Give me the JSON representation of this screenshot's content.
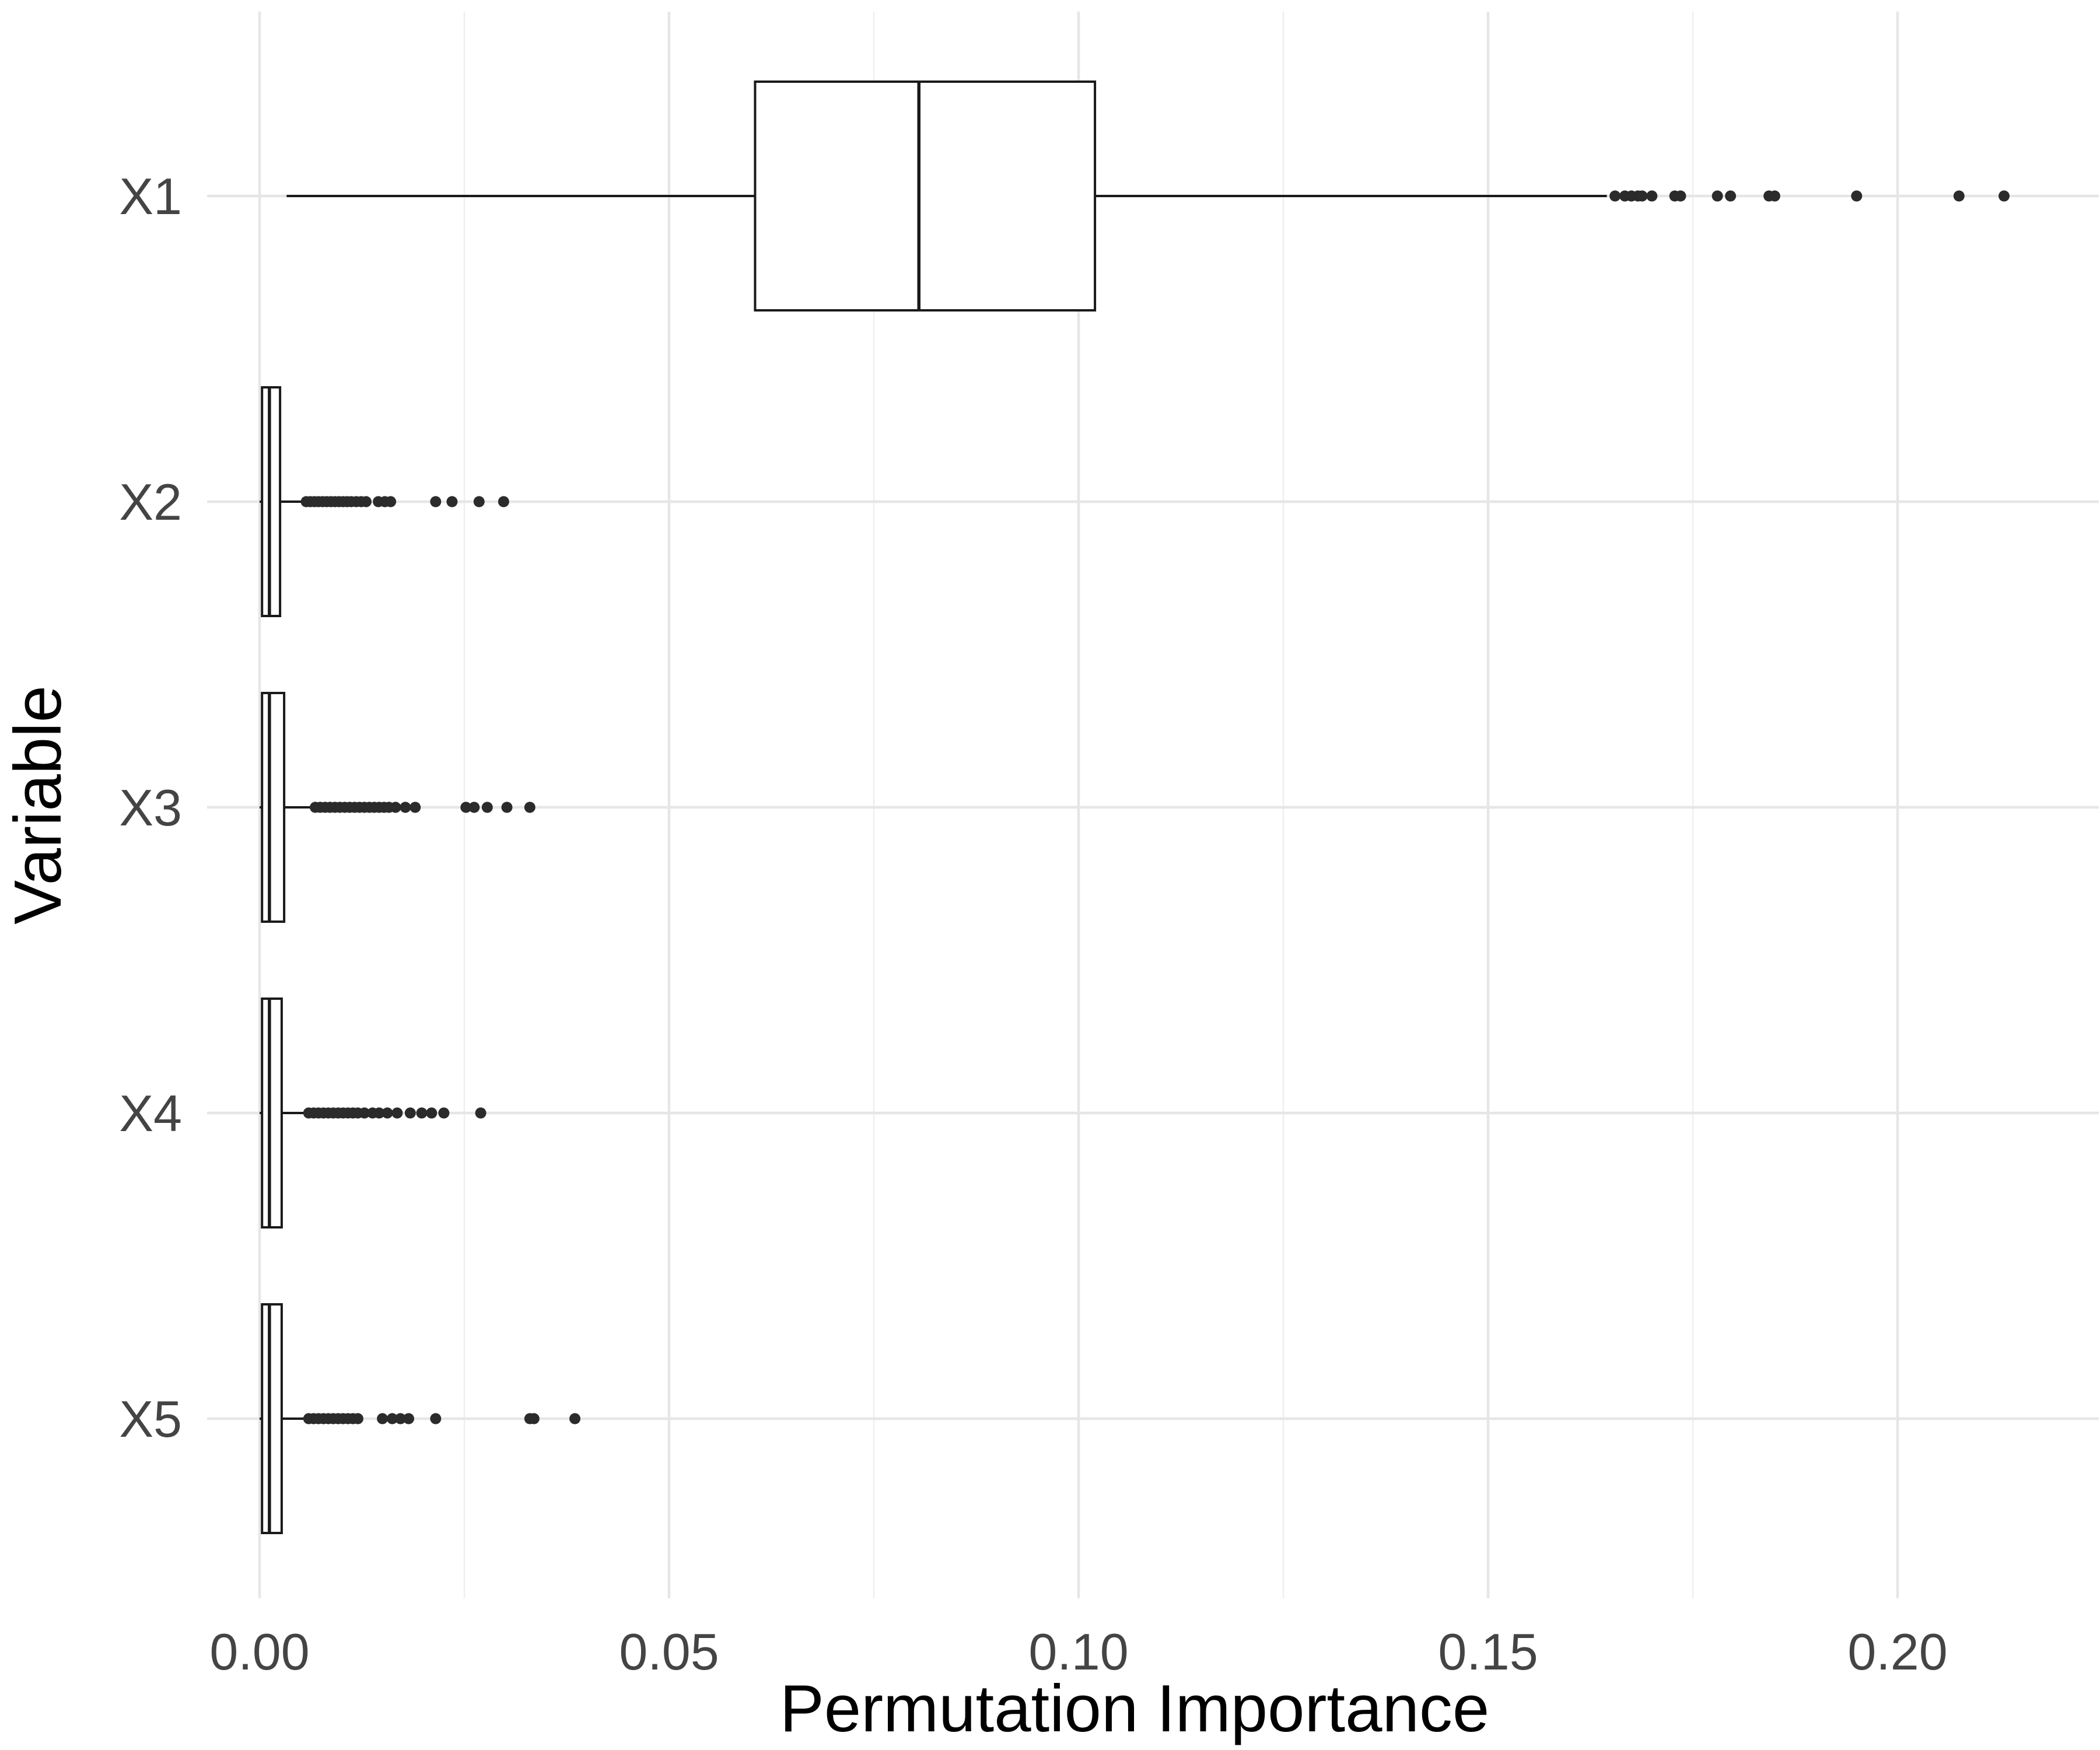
{
  "chart_data": {
    "type": "boxplot",
    "orientation": "horizontal",
    "title": "",
    "xlabel": "Permutation Importance",
    "ylabel": "Variable",
    "xlim": [
      -0.0125,
      0.2225
    ],
    "xticks": [
      0.0,
      0.05,
      0.1,
      0.15,
      0.2
    ],
    "xtick_labels": [
      "0.00",
      "0.05",
      "0.10",
      "0.15",
      "0.20"
    ],
    "minor_xticks": [
      0.025,
      0.075,
      0.125,
      0.175
    ],
    "grid": true,
    "categories": [
      "X1",
      "X2",
      "X3",
      "X4",
      "X5"
    ],
    "boxes": [
      {
        "name": "X1",
        "whisker_low": 0.0033,
        "q1": 0.0605,
        "median": 0.0805,
        "q3": 0.102,
        "whisker_high": 0.1645,
        "outliers": [
          0.1655,
          0.1667,
          0.1675,
          0.1683,
          0.1688,
          0.17,
          0.1728,
          0.1735,
          0.178,
          0.1796,
          0.1843,
          0.185,
          0.195,
          0.2075,
          0.213
        ]
      },
      {
        "name": "X2",
        "whisker_low": 0.0,
        "q1": 0.0003,
        "median": 0.0012,
        "q3": 0.0025,
        "whisker_high": 0.0055,
        "outliers": [
          0.0057,
          0.0062,
          0.0067,
          0.0072,
          0.0077,
          0.0082,
          0.0087,
          0.0092,
          0.0097,
          0.0102,
          0.0107,
          0.0112,
          0.0118,
          0.0124,
          0.013,
          0.0145,
          0.0153,
          0.016,
          0.0215,
          0.0235,
          0.0268,
          0.0298
        ]
      },
      {
        "name": "X3",
        "whisker_low": 0.0,
        "q1": 0.0003,
        "median": 0.0012,
        "q3": 0.003,
        "whisker_high": 0.0065,
        "outliers": [
          0.0068,
          0.0074,
          0.008,
          0.0086,
          0.0092,
          0.0098,
          0.0104,
          0.011,
          0.0116,
          0.0122,
          0.0128,
          0.0134,
          0.014,
          0.0146,
          0.0152,
          0.0158,
          0.0166,
          0.0178,
          0.019,
          0.0252,
          0.0262,
          0.0278,
          0.0302,
          0.033
        ]
      },
      {
        "name": "X4",
        "whisker_low": 0.0,
        "q1": 0.0003,
        "median": 0.0012,
        "q3": 0.0027,
        "whisker_high": 0.0058,
        "outliers": [
          0.006,
          0.0066,
          0.0072,
          0.0078,
          0.0084,
          0.009,
          0.0096,
          0.0102,
          0.0108,
          0.0114,
          0.012,
          0.0128,
          0.0138,
          0.0146,
          0.0156,
          0.0168,
          0.0184,
          0.0198,
          0.021,
          0.0225,
          0.027
        ]
      },
      {
        "name": "X5",
        "whisker_low": 0.0,
        "q1": 0.0003,
        "median": 0.0012,
        "q3": 0.0027,
        "whisker_high": 0.0058,
        "outliers": [
          0.006,
          0.0066,
          0.0072,
          0.0078,
          0.0084,
          0.009,
          0.0096,
          0.0102,
          0.0108,
          0.0114,
          0.012,
          0.015,
          0.0162,
          0.0172,
          0.0182,
          0.0215,
          0.033,
          0.0335,
          0.0385
        ]
      }
    ]
  }
}
